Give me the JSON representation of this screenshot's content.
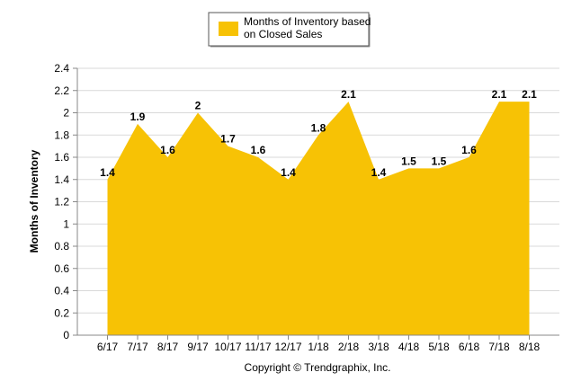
{
  "chart_data": {
    "type": "area",
    "categories": [
      "6/17",
      "7/17",
      "8/17",
      "9/17",
      "10/17",
      "11/17",
      "12/17",
      "1/18",
      "2/18",
      "3/18",
      "4/18",
      "5/18",
      "6/18",
      "7/18",
      "8/18"
    ],
    "series": [
      {
        "name": "Months of Inventory based on Closed Sales",
        "values": [
          1.4,
          1.9,
          1.6,
          2,
          1.7,
          1.6,
          1.4,
          1.8,
          2.1,
          1.4,
          1.5,
          1.5,
          1.6,
          2.1,
          2.1
        ],
        "color": "#F7C205"
      }
    ],
    "data_labels": [
      "1.4",
      "1.9",
      "1.6",
      "2",
      "1.7",
      "1.6",
      "1.4",
      "1.8",
      "2.1",
      "1.4",
      "1.5",
      "1.5",
      "1.6",
      "2.1",
      "2.1"
    ],
    "y_ticks": [
      "0",
      "0.2",
      "0.4",
      "0.6",
      "0.8",
      "1",
      "1.2",
      "1.4",
      "1.6",
      "1.8",
      "2",
      "2.2",
      "2.4"
    ],
    "ylabel": "Months of Inventory",
    "xlabel": "",
    "ylim": [
      0,
      2.4
    ],
    "grid": true,
    "legend": {
      "placement": "top-center",
      "lines": [
        "Months of Inventory based",
        "on Closed Sales"
      ]
    }
  },
  "footer": {
    "copyright": "Copyright © Trendgraphix, Inc."
  }
}
